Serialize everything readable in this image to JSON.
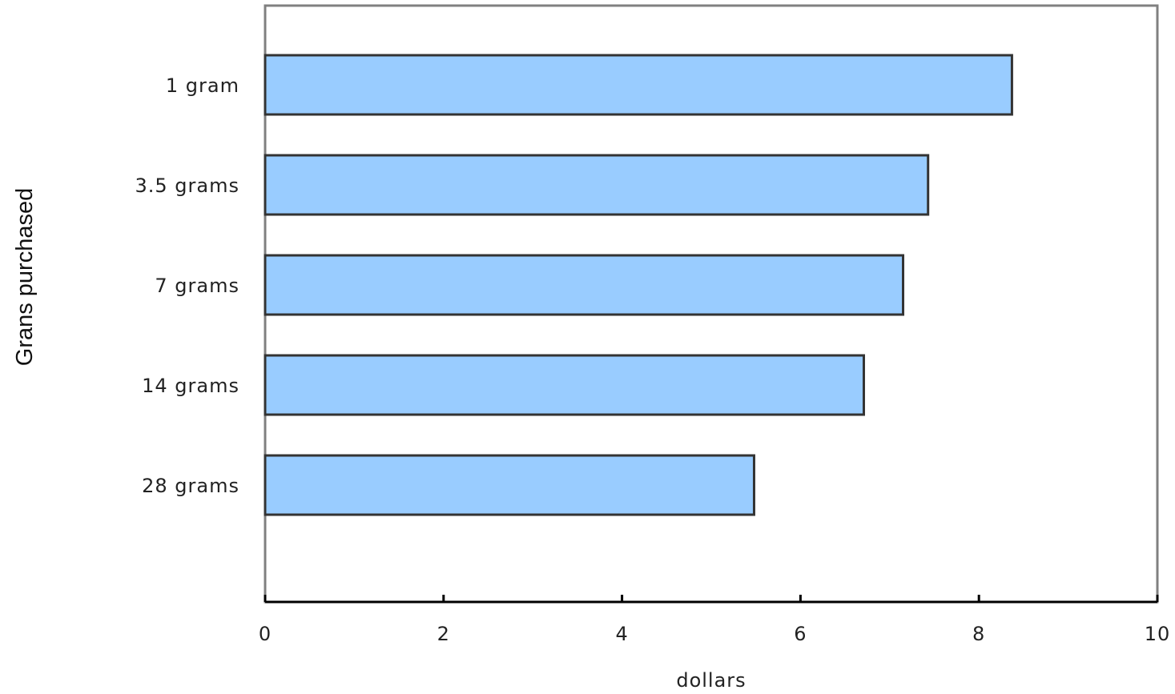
{
  "chart_data": {
    "type": "bar",
    "orientation": "horizontal",
    "title": "",
    "xlabel": "dollars",
    "ylabel": "Grans purchased",
    "categories": [
      "1 gram",
      "3.5 grams",
      "7 grams",
      "14 grams",
      "28 grams"
    ],
    "series": [
      {
        "values": [
          8.37,
          7.43,
          7.15,
          6.71,
          5.48
        ],
        "color": "#99ccff"
      }
    ],
    "xlim": [
      0,
      10
    ],
    "xticks": [
      0,
      2,
      4,
      6,
      8,
      10
    ],
    "grid": false,
    "legend": "none",
    "colors": {
      "bar_fill": "#99ccff",
      "bar_stroke": "#333333",
      "frame": "#808080"
    }
  }
}
